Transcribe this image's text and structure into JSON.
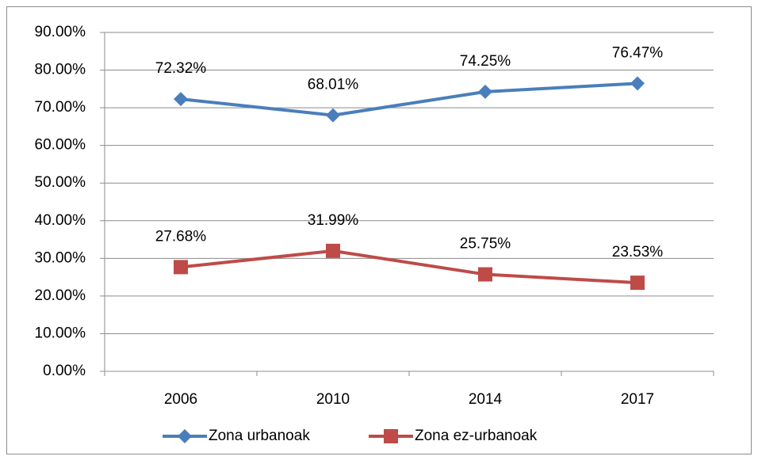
{
  "chart_data": {
    "type": "line",
    "categories": [
      "2006",
      "2010",
      "2014",
      "2017"
    ],
    "series": [
      {
        "name": "Zona urbanoak",
        "color": "#4a7ebb",
        "marker": "diamond",
        "values": [
          72.32,
          68.01,
          74.25,
          76.47
        ],
        "value_labels": [
          "72.32%",
          "68.01%",
          "74.25%",
          "76.47%"
        ]
      },
      {
        "name": "Zona ez-urbanoak",
        "color": "#be4b48",
        "marker": "square",
        "values": [
          27.68,
          31.99,
          25.75,
          23.53
        ],
        "value_labels": [
          "27.68%",
          "31.99%",
          "25.75%",
          "23.53%"
        ]
      }
    ],
    "ylim": [
      0,
      90
    ],
    "yticks": [
      {
        "value": 0,
        "label": "0.00%"
      },
      {
        "value": 10,
        "label": "10.00%"
      },
      {
        "value": 20,
        "label": "20.00%"
      },
      {
        "value": 30,
        "label": "30.00%"
      },
      {
        "value": 40,
        "label": "40.00%"
      },
      {
        "value": 50,
        "label": "50.00%"
      },
      {
        "value": 60,
        "label": "60.00%"
      },
      {
        "value": 70,
        "label": "70.00%"
      },
      {
        "value": 80,
        "label": "80.00%"
      },
      {
        "value": 90,
        "label": "90.00%"
      }
    ],
    "grid": true,
    "legend": "bottom"
  }
}
